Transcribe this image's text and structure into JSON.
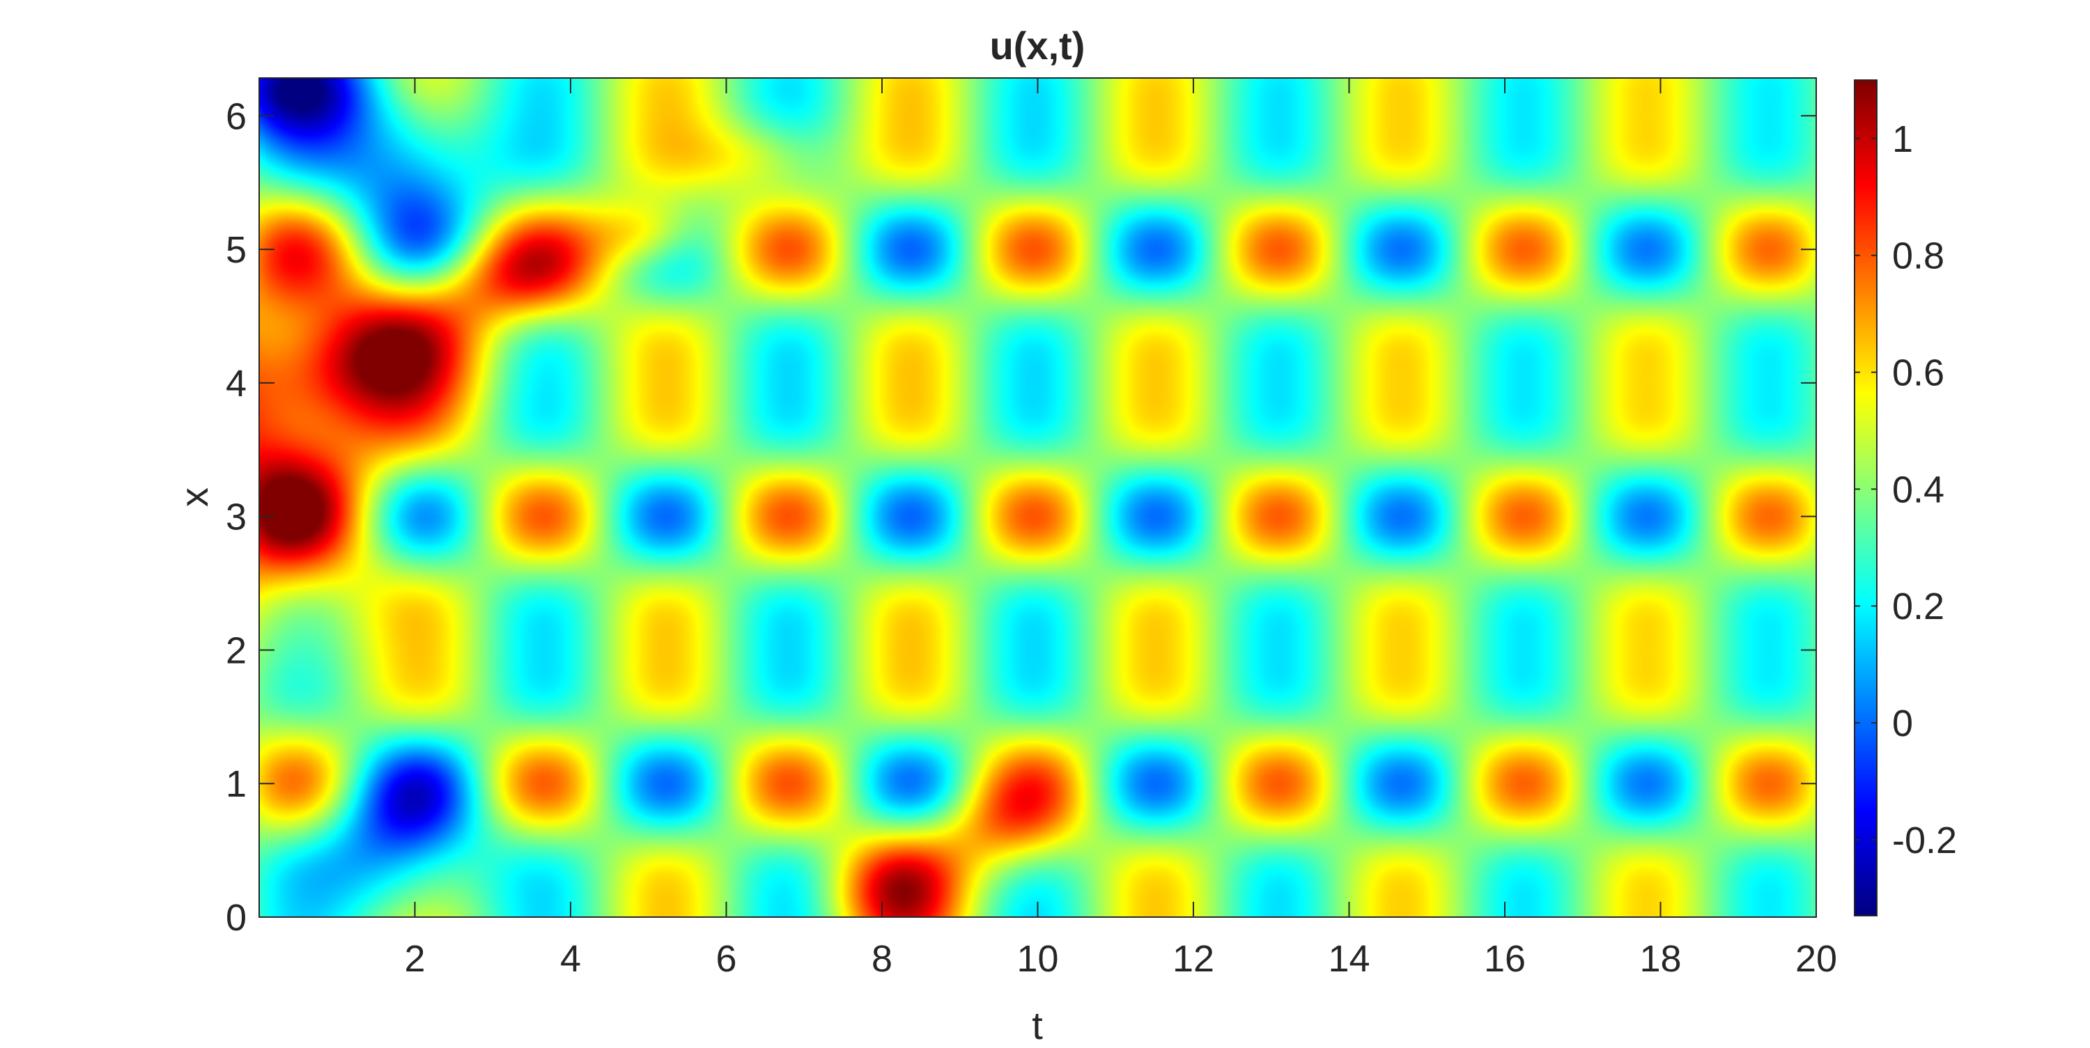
{
  "chart_data": {
    "type": "heatmap",
    "title": "u(x,t)",
    "xlabel": "t",
    "ylabel": "x",
    "xlim": [
      0,
      20
    ],
    "ylim": [
      0,
      6.2832
    ],
    "xticks": [
      2,
      4,
      6,
      8,
      10,
      12,
      14,
      16,
      18,
      20
    ],
    "yticks": [
      0,
      1,
      2,
      3,
      4,
      5,
      6
    ],
    "colormap": "jet",
    "clim": [
      -0.33,
      1.1
    ],
    "colorbar_ticks": [
      -0.2,
      0,
      0.2,
      0.4,
      0.6,
      0.8,
      1
    ],
    "colorbar_labels": [
      "-0.2",
      "0",
      "0.2",
      "0.4",
      "0.6",
      "0.8",
      "1"
    ],
    "grid": false,
    "x_tick_labels": [
      "2",
      "4",
      "6",
      "8",
      "10",
      "12",
      "14",
      "16",
      "18",
      "20"
    ],
    "y_tick_labels": [
      "0",
      "1",
      "2",
      "3",
      "4",
      "5",
      "6"
    ]
  }
}
